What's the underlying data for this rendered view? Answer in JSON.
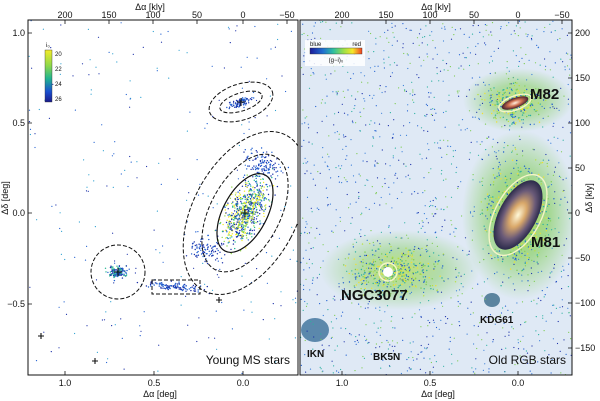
{
  "top_axis": {
    "label": "Δα [kly]",
    "left_ticks": [
      "200",
      "150",
      "100",
      "50",
      "0",
      "−50"
    ],
    "right_ticks": [
      "200",
      "150",
      "100",
      "50",
      "0",
      "−50"
    ]
  },
  "bottom_axis": {
    "label": "Δα [deg]",
    "left_ticks": [
      "1.0",
      "0.5",
      "0.0"
    ],
    "right_ticks": [
      "1.0",
      "0.5",
      "0.0"
    ]
  },
  "left_axis": {
    "label": "Δδ [deg]",
    "ticks": [
      "1.0",
      "0.5",
      "0.0",
      "−0.5"
    ]
  },
  "right_axis": {
    "label": "Δδ [kly]",
    "ticks": [
      "200",
      "150",
      "100",
      "50",
      "0",
      "−50",
      "−100",
      "−150"
    ]
  },
  "left_panel": {
    "title": "Young MS stars",
    "colorbar": {
      "label": "i₀",
      "ticks": [
        "20",
        "22",
        "24",
        "26"
      ],
      "colors": [
        "#f4ec2a",
        "#8ed84a",
        "#20b490",
        "#1a4fd0",
        "#1a1a8a"
      ]
    }
  },
  "right_panel": {
    "title": "Old RGB stars",
    "colorbar": {
      "left_label": "blue",
      "right_label": "red",
      "title": "(g−i)₀",
      "colors": [
        "#1a1a9a",
        "#1f6fd0",
        "#2fc0a0",
        "#9de048",
        "#f6e82a",
        "#f04020"
      ]
    },
    "labels": {
      "m82": "M82",
      "m81": "M81",
      "ngc3077": "NGC3077",
      "kdg61": "KDG61",
      "ikn": "IKN",
      "bk5n": "BK5N"
    }
  }
}
